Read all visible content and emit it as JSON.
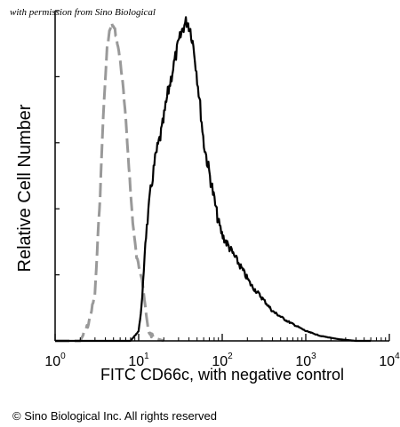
{
  "watermark": "with permission from Sino Biological",
  "copyright": "© Sino Biological Inc. All rights reserved",
  "colors": {
    "sample": "#000000",
    "control": "#999999",
    "axis": "#000000"
  },
  "chart_data": {
    "type": "line",
    "xlabel": "FITC CD66c, with negative control",
    "ylabel": "Relative Cell Number",
    "x_scale": "log",
    "xlim": [
      1,
      10000
    ],
    "ylim": [
      0,
      1
    ],
    "x_ticks": [
      {
        "value": 1,
        "base": "10",
        "exp": "0"
      },
      {
        "value": 10,
        "base": "10",
        "exp": "1"
      },
      {
        "value": 100,
        "base": "10",
        "exp": "2"
      },
      {
        "value": 1000,
        "base": "10",
        "exp": "3"
      },
      {
        "value": 10000,
        "base": "10",
        "exp": "4"
      }
    ],
    "y_ticks": [
      0,
      0.2,
      0.4,
      0.6,
      0.8,
      1.0
    ],
    "series": [
      {
        "style": "dashed",
        "color": "#999999",
        "x": [
          1.0,
          2.0,
          2.5,
          3.0,
          3.2,
          3.5,
          3.7,
          4.0,
          4.2,
          4.5,
          4.8,
          5.2,
          5.5,
          6.0,
          6.5,
          7.0,
          7.5,
          8.0,
          8.5,
          9.0,
          9.5,
          10.0,
          11.0,
          12.0,
          13.0,
          15.0,
          20.0
        ],
        "y": [
          0.0,
          0.0,
          0.05,
          0.14,
          0.28,
          0.47,
          0.64,
          0.8,
          0.89,
          0.94,
          0.96,
          0.94,
          0.91,
          0.85,
          0.77,
          0.67,
          0.56,
          0.45,
          0.36,
          0.3,
          0.25,
          0.23,
          0.19,
          0.1,
          0.03,
          0.01,
          0.0
        ]
      },
      {
        "style": "solid",
        "color": "#000000",
        "x": [
          1.0,
          8.0,
          10.0,
          11.0,
          12.0,
          14.0,
          16.0,
          19.0,
          22.0,
          26.0,
          30.0,
          34.0,
          38.0,
          42.0,
          46.0,
          50.0,
          55.0,
          60.0,
          70.0,
          80.0,
          90.0,
          100.0,
          130.0,
          170.0,
          220.0,
          300.0,
          400.0,
          600.0,
          1000.0,
          1500.0,
          2500.0,
          4000.0,
          6000.0
        ],
        "y": [
          0.0,
          0.0,
          0.03,
          0.12,
          0.3,
          0.46,
          0.56,
          0.64,
          0.74,
          0.83,
          0.9,
          0.95,
          0.97,
          0.94,
          0.88,
          0.8,
          0.7,
          0.6,
          0.51,
          0.43,
          0.36,
          0.32,
          0.27,
          0.22,
          0.17,
          0.13,
          0.09,
          0.06,
          0.03,
          0.015,
          0.005,
          0.0,
          0.0
        ]
      }
    ]
  }
}
